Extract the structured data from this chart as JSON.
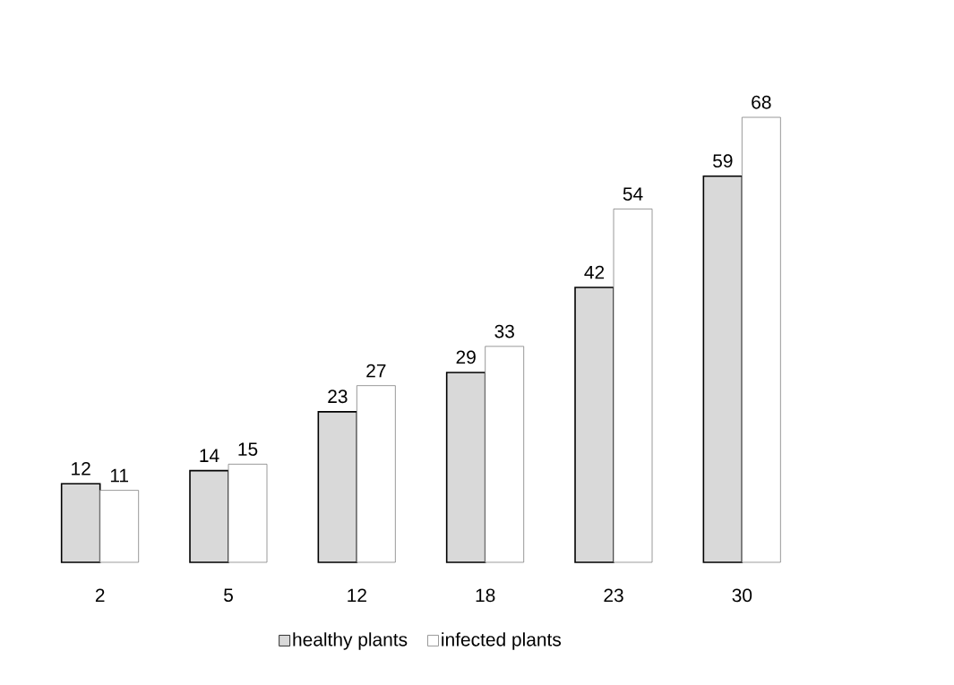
{
  "chart_data": {
    "type": "bar",
    "categories": [
      "2",
      "5",
      "12",
      "18",
      "23",
      "30"
    ],
    "series": [
      {
        "name": "healthy plants",
        "color": "#d9d9d9",
        "values": [
          12,
          14,
          23,
          29,
          42,
          59
        ]
      },
      {
        "name": "infected plants",
        "color": "#ffffff",
        "values": [
          11,
          15,
          27,
          33,
          54,
          68
        ]
      }
    ],
    "data_labels": true,
    "legend": "bottom"
  }
}
